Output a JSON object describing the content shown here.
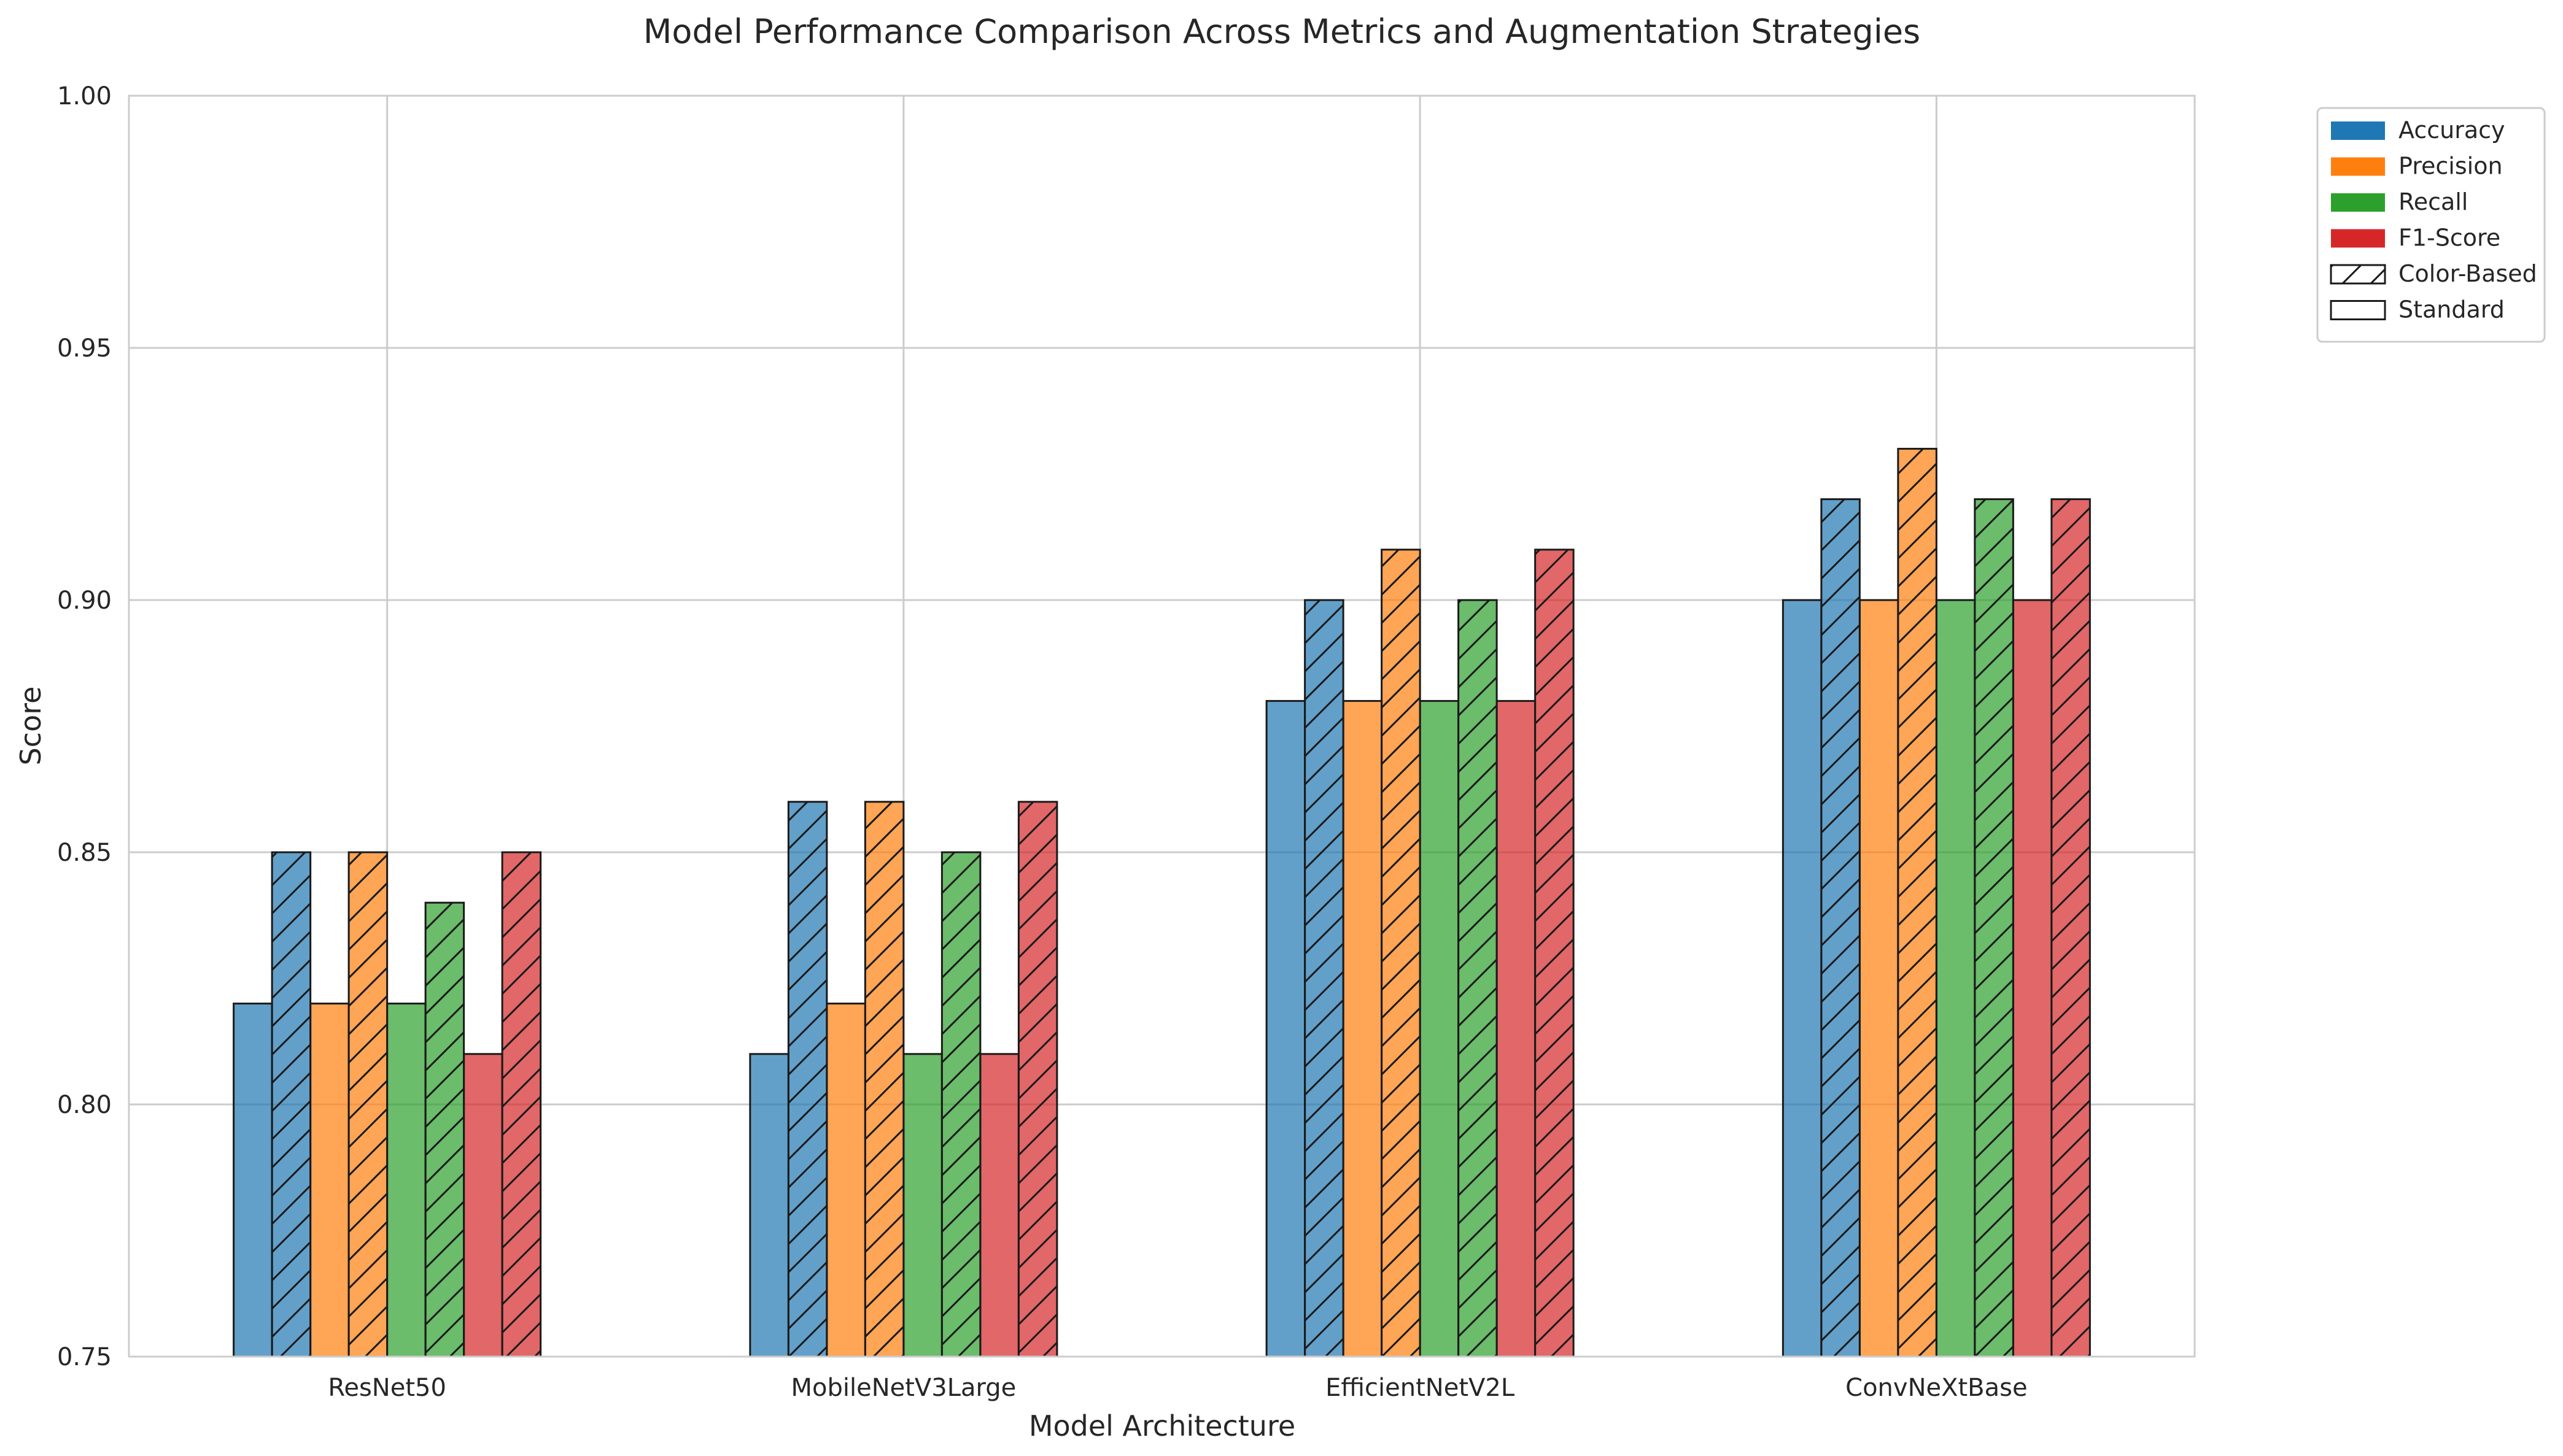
{
  "chart_data": {
    "type": "bar",
    "title": "Model Performance Comparison Across Metrics and Augmentation Strategies",
    "xlabel": "Model Architecture",
    "ylabel": "Score",
    "ylim": [
      0.75,
      1.0
    ],
    "yticks": [
      "0.75",
      "0.80",
      "0.85",
      "0.90",
      "0.95",
      "1.00"
    ],
    "grid": true,
    "legend_position": "outside top-right",
    "categories": [
      "ResNet50",
      "MobileNetV3Large",
      "EfficientNetV2L",
      "ConvNeXtBase"
    ],
    "metrics": [
      {
        "name": "Accuracy",
        "color": "#1f77b4"
      },
      {
        "name": "Precision",
        "color": "#ff7f0e"
      },
      {
        "name": "Recall",
        "color": "#2ca02c"
      },
      {
        "name": "F1-Score",
        "color": "#d62728"
      }
    ],
    "strategies": [
      {
        "name": "Color-Based",
        "hatch": true
      },
      {
        "name": "Standard",
        "hatch": false
      }
    ],
    "series": [
      {
        "metric": "Accuracy",
        "strategy": "Standard",
        "values": [
          0.82,
          0.81,
          0.88,
          0.9
        ]
      },
      {
        "metric": "Accuracy",
        "strategy": "Color-Based",
        "values": [
          0.85,
          0.86,
          0.9,
          0.92
        ]
      },
      {
        "metric": "Precision",
        "strategy": "Standard",
        "values": [
          0.82,
          0.82,
          0.88,
          0.9
        ]
      },
      {
        "metric": "Precision",
        "strategy": "Color-Based",
        "values": [
          0.85,
          0.86,
          0.91,
          0.93
        ]
      },
      {
        "metric": "Recall",
        "strategy": "Standard",
        "values": [
          0.82,
          0.81,
          0.88,
          0.9
        ]
      },
      {
        "metric": "Recall",
        "strategy": "Color-Based",
        "values": [
          0.84,
          0.85,
          0.9,
          0.92
        ]
      },
      {
        "metric": "F1-Score",
        "strategy": "Standard",
        "values": [
          0.81,
          0.81,
          0.88,
          0.9
        ]
      },
      {
        "metric": "F1-Score",
        "strategy": "Color-Based",
        "values": [
          0.85,
          0.86,
          0.91,
          0.92
        ]
      }
    ]
  }
}
